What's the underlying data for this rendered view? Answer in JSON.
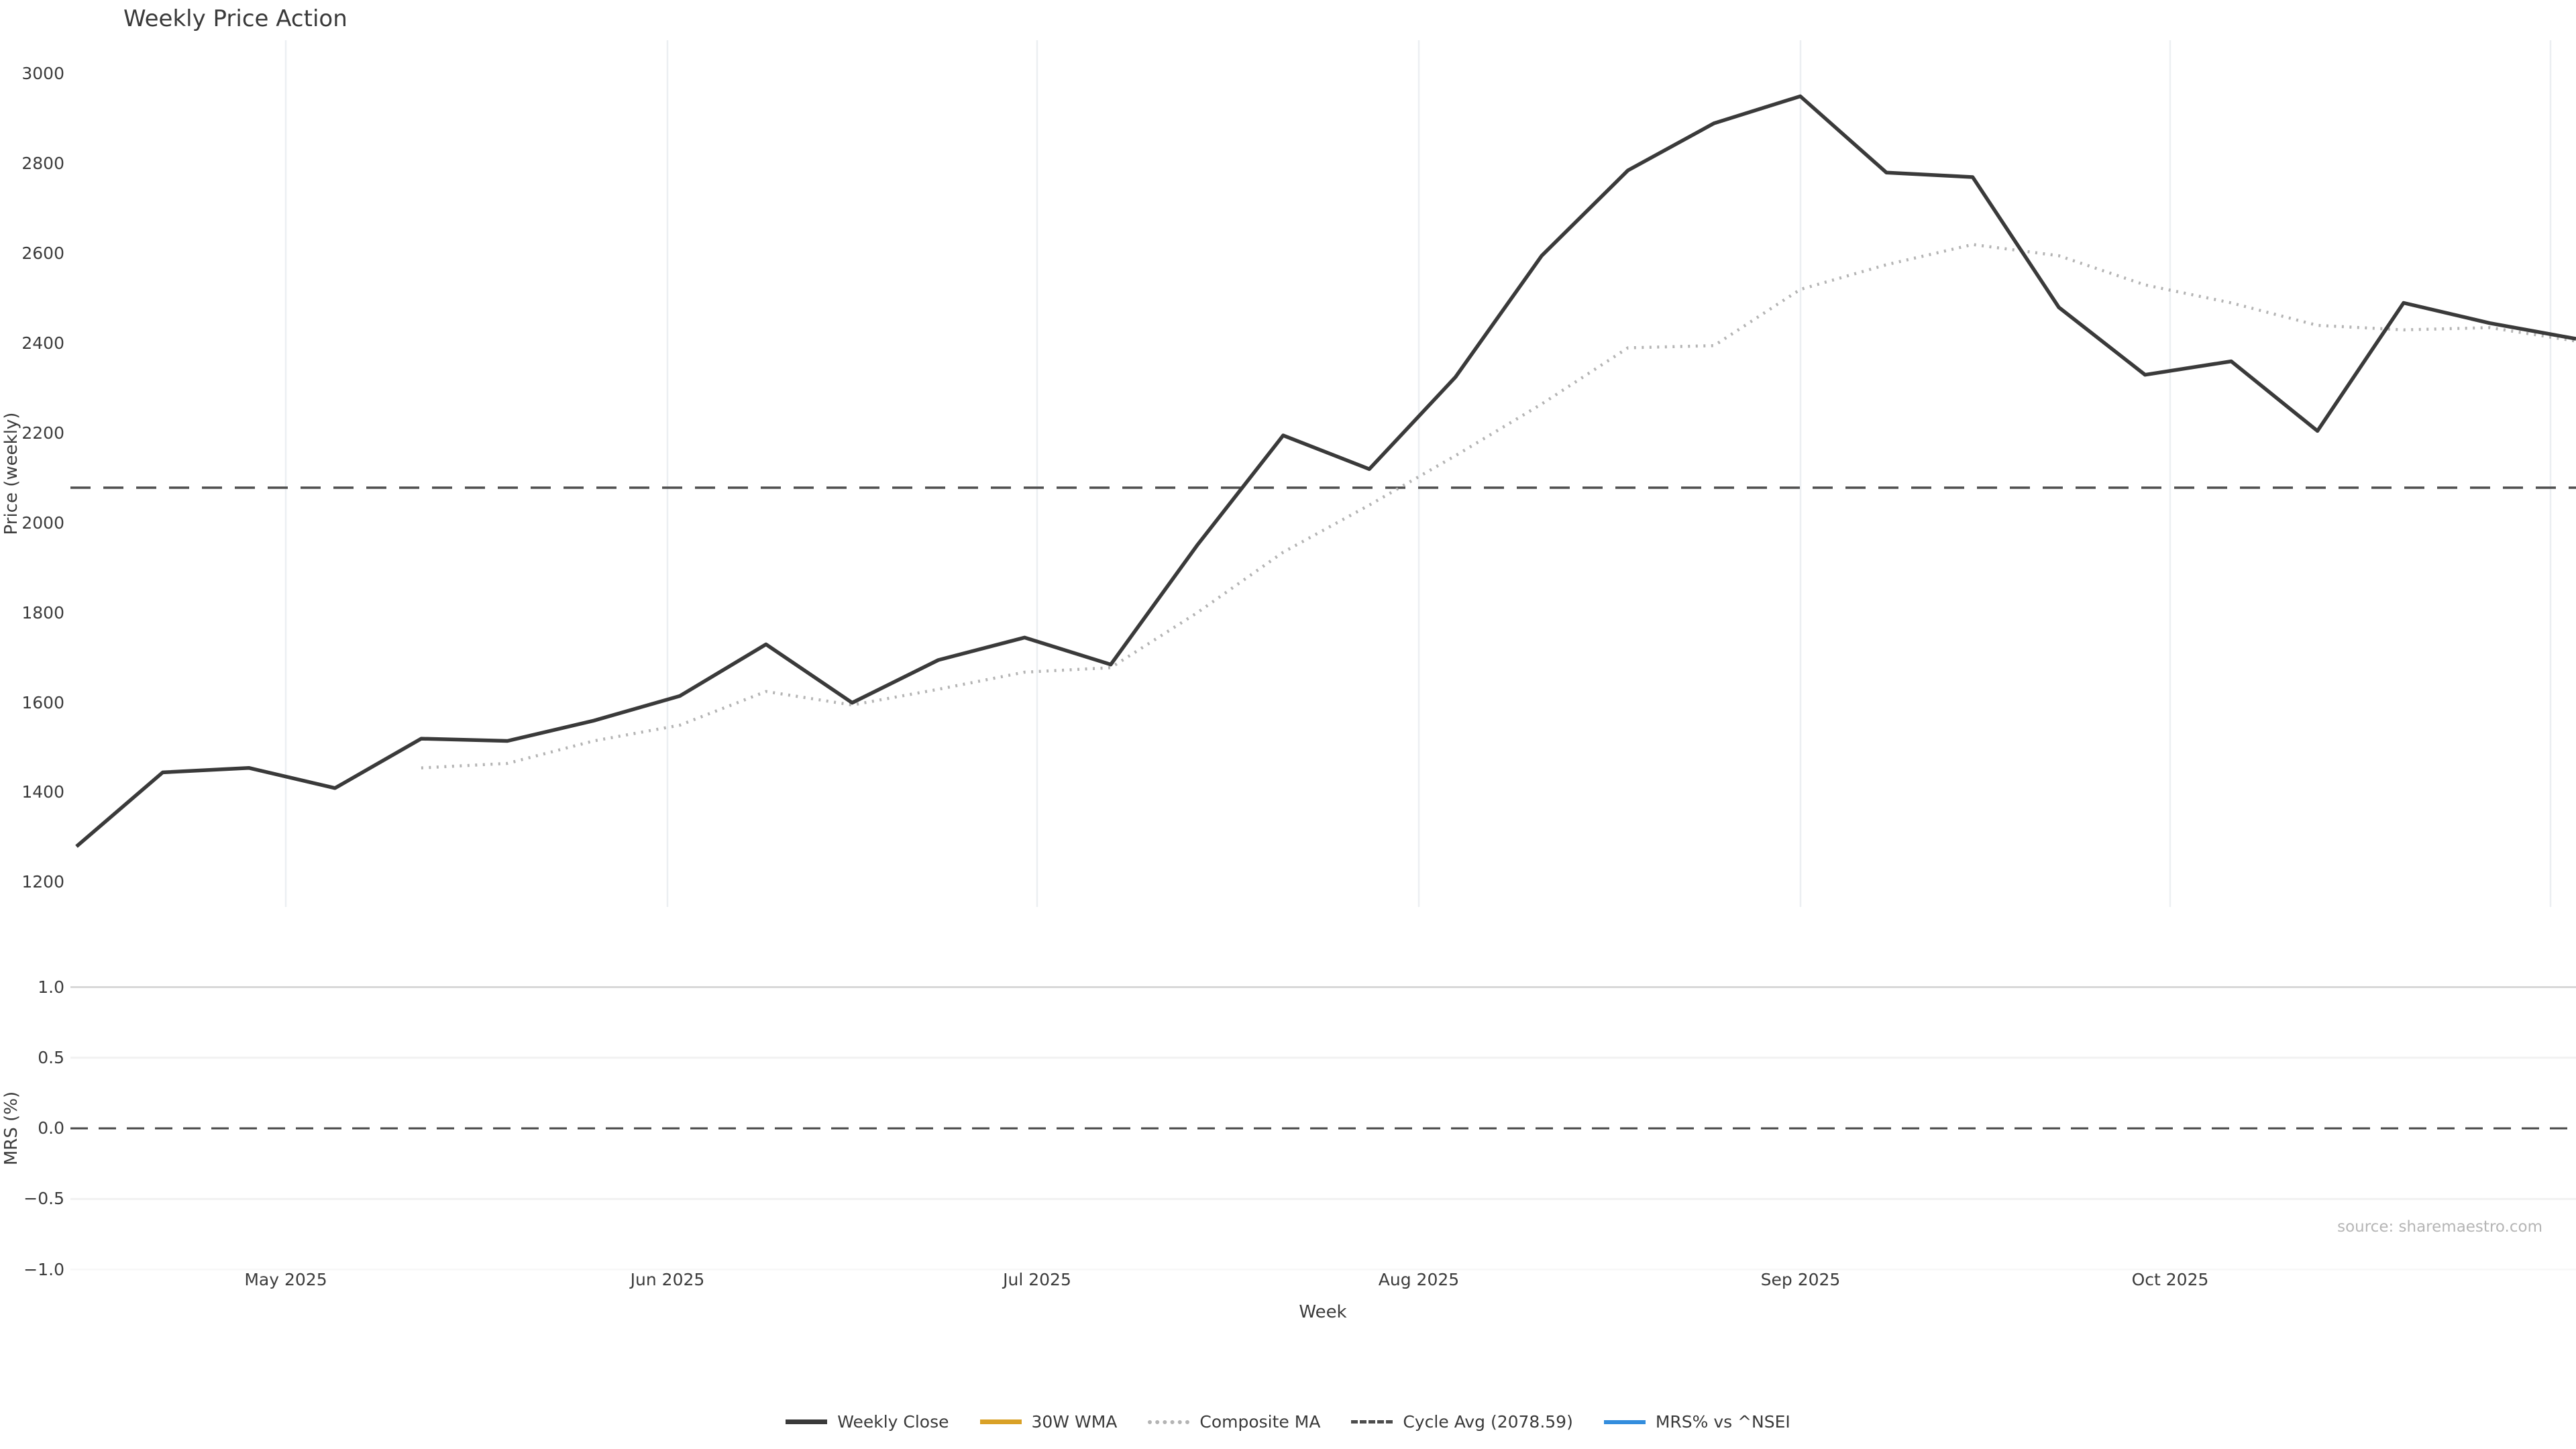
{
  "title": "Weekly Price Action",
  "source_note": "source: sharemaestro.com",
  "price_panel": {
    "ylabel": "Price (weekly)"
  },
  "mrs_panel": {
    "ylabel": "MRS (%)",
    "yticks": [
      "1.0",
      "0.5",
      "0.0",
      "−0.5",
      "−1.0"
    ]
  },
  "xaxis": {
    "label": "Week",
    "tick_labels": [
      "May 2025",
      "Jun 2025",
      "Jul 2025",
      "Aug 2025",
      "Sep 2025",
      "Oct 2025"
    ]
  },
  "legend": [
    {
      "label": "Weekly Close",
      "color": "#3a3a3a",
      "style": "solid",
      "thickness": 7
    },
    {
      "label": "30W WMA",
      "color": "#d9a127",
      "style": "solid",
      "thickness": 7
    },
    {
      "label": "Composite MA",
      "color": "#b4b4b4",
      "style": "dotted",
      "thickness": 6
    },
    {
      "label": "Cycle Avg (2078.59)",
      "color": "#4d4d4d",
      "style": "dashed",
      "thickness": 5
    },
    {
      "label": "MRS% vs ^NSEI",
      "color": "#338ddd",
      "style": "solid",
      "thickness": 6
    }
  ],
  "chart_data": {
    "type": "line",
    "title": "Weekly Price Action",
    "xlabel": "Week",
    "panels": [
      {
        "name": "price",
        "ylabel": "Price (weekly)",
        "yticks": [
          3000,
          2800,
          2600,
          2400,
          2200,
          2000,
          1800,
          1600,
          1400,
          1200
        ],
        "ylim": [
          1145,
          3075
        ],
        "grid": "vertical-months"
      },
      {
        "name": "mrs",
        "ylabel": "MRS (%)",
        "yticks": [
          1.0,
          0.5,
          0.0,
          -0.5,
          -1.0
        ],
        "ylim": [
          -1.15,
          1.15
        ],
        "grid": "horizontal",
        "zero_line_dashed": true
      }
    ],
    "x_month_gridlines": [
      "2025-05-01",
      "2025-06-01",
      "2025-07-01",
      "2025-08-01",
      "2025-09-01",
      "2025-10-01",
      "2025-11-01"
    ],
    "x_weekly_dates": [
      "2025-04-14",
      "2025-04-21",
      "2025-04-28",
      "2025-05-05",
      "2025-05-12",
      "2025-05-19",
      "2025-05-26",
      "2025-06-02",
      "2025-06-09",
      "2025-06-16",
      "2025-06-23",
      "2025-06-30",
      "2025-07-07",
      "2025-07-14",
      "2025-07-21",
      "2025-07-28",
      "2025-08-04",
      "2025-08-11",
      "2025-08-18",
      "2025-08-25",
      "2025-09-01",
      "2025-09-08",
      "2025-09-15",
      "2025-09-22",
      "2025-09-29",
      "2025-10-06",
      "2025-10-13",
      "2025-10-20",
      "2025-10-27",
      "2025-11-03"
    ],
    "series": [
      {
        "name": "Weekly Close",
        "panel": "price",
        "color": "#3a3a3a",
        "style": "solid",
        "values": [
          1280,
          1445,
          1455,
          1410,
          1520,
          1515,
          1560,
          1615,
          1730,
          1600,
          1695,
          1745,
          1685,
          1950,
          2195,
          2120,
          2325,
          2595,
          2785,
          2890,
          2950,
          2780,
          2770,
          2480,
          2330,
          2360,
          2205,
          2490,
          2445,
          2410
        ]
      },
      {
        "name": "Composite MA",
        "panel": "price",
        "color": "#b4b4b4",
        "style": "dotted",
        "values": [
          null,
          null,
          null,
          null,
          1455,
          1465,
          1515,
          1550,
          1625,
          1595,
          1630,
          1668,
          1678,
          1800,
          1935,
          2040,
          2150,
          2265,
          2390,
          2395,
          2520,
          2575,
          2620,
          2595,
          2530,
          2490,
          2440,
          2430,
          2435,
          2405
        ]
      },
      {
        "name": "30W WMA",
        "panel": "price",
        "color": "#d9a127",
        "style": "solid",
        "values": []
      },
      {
        "name": "Cycle Avg",
        "panel": "price",
        "color": "#4d4d4d",
        "style": "dashed",
        "constant_value": 2078.59
      },
      {
        "name": "MRS% vs ^NSEI",
        "panel": "mrs",
        "color": "#338ddd",
        "style": "solid",
        "values": []
      }
    ],
    "legend_position": "bottom-center"
  }
}
